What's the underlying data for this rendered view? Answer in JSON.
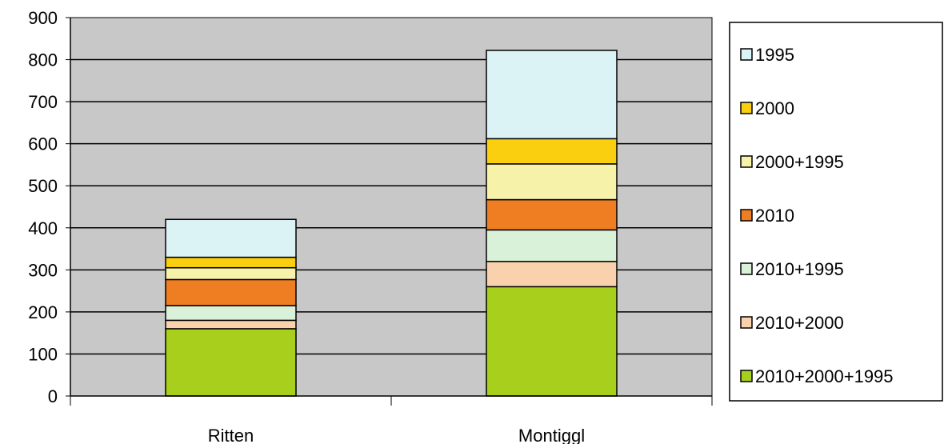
{
  "chart_data": {
    "type": "bar",
    "stacked": true,
    "categories": [
      "Ritten",
      "Montiggl"
    ],
    "series": [
      {
        "name": "2010+2000+1995",
        "color": "#a8cf1c",
        "values": [
          160,
          260
        ]
      },
      {
        "name": "2010+2000",
        "color": "#f9d2ad",
        "values": [
          20,
          60
        ]
      },
      {
        "name": "2010+1995",
        "color": "#d8f1d8",
        "values": [
          35,
          75
        ]
      },
      {
        "name": "2010",
        "color": "#ef7d22",
        "values": [
          62,
          72
        ]
      },
      {
        "name": "2000+1995",
        "color": "#f6f2aa",
        "values": [
          28,
          85
        ]
      },
      {
        "name": "2000",
        "color": "#f9cf10",
        "values": [
          25,
          60
        ]
      },
      {
        "name": "1995",
        "color": "#dcf3f6",
        "values": [
          90,
          210
        ]
      }
    ],
    "legend_order": [
      "1995",
      "2000",
      "2000+1995",
      "2010",
      "2010+1995",
      "2010+2000",
      "2010+2000+1995"
    ],
    "y_ticks": [
      "0",
      "100",
      "200",
      "300",
      "400",
      "500",
      "600",
      "700",
      "800",
      "900"
    ],
    "ylim": [
      0,
      900
    ],
    "grid": true,
    "plot_background": "#c8c8c8",
    "legend_position": "right",
    "title": "",
    "xlabel": "",
    "ylabel": ""
  }
}
